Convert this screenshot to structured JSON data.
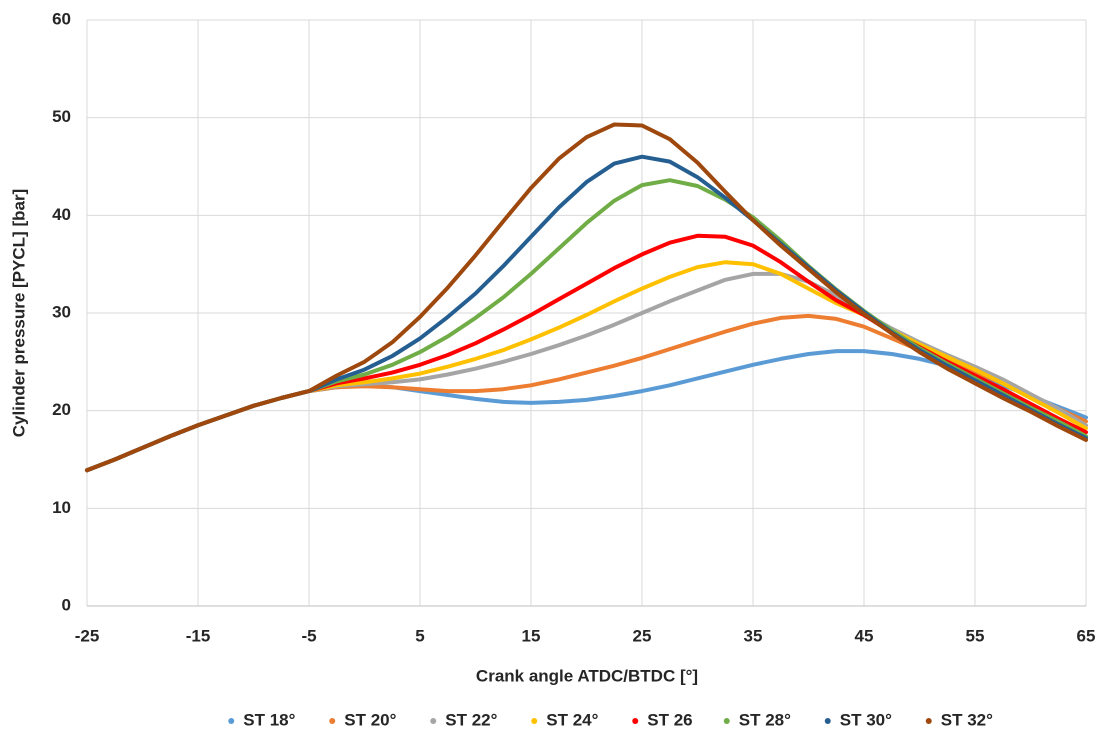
{
  "chart_data": {
    "type": "line",
    "xlabel": "Crank angle ATDC/BTDC [°]",
    "ylabel": "Cylinder pressure [PYCL] [bar]",
    "x": [
      -25,
      -22.5,
      -20,
      -17.5,
      -15,
      -12.5,
      -10,
      -7.5,
      -5,
      -2.5,
      0,
      2.5,
      5,
      7.5,
      10,
      12.5,
      15,
      17.5,
      20,
      22.5,
      25,
      27.5,
      30,
      32.5,
      35,
      37.5,
      40,
      42.5,
      45,
      47.5,
      50,
      52.5,
      55,
      57.5,
      60,
      62.5,
      65
    ],
    "xlim": [
      -25,
      65
    ],
    "xticks": [
      -25,
      -15,
      -5,
      5,
      15,
      25,
      35,
      45,
      55,
      65
    ],
    "ylim": [
      0,
      60
    ],
    "yticks": [
      0,
      10,
      20,
      30,
      40,
      50,
      60
    ],
    "grid": true,
    "legend": "bottom",
    "series": [
      {
        "name": "ST 18°",
        "color": "#5b9bd5",
        "values": [
          13.9,
          15.0,
          16.2,
          17.4,
          18.5,
          19.5,
          20.5,
          21.3,
          22.0,
          22.4,
          22.6,
          22.4,
          22.0,
          21.6,
          21.2,
          20.9,
          20.8,
          20.9,
          21.1,
          21.5,
          22.0,
          22.6,
          23.3,
          24.0,
          24.7,
          25.3,
          25.8,
          26.1,
          26.1,
          25.8,
          25.3,
          24.6,
          23.6,
          22.6,
          21.5,
          20.4,
          19.3
        ]
      },
      {
        "name": "ST 20°",
        "color": "#ed7d31",
        "values": [
          13.9,
          15.0,
          16.2,
          17.4,
          18.5,
          19.5,
          20.5,
          21.3,
          22.0,
          22.4,
          22.5,
          22.4,
          22.2,
          22.0,
          22.0,
          22.2,
          22.6,
          23.2,
          23.9,
          24.6,
          25.4,
          26.3,
          27.2,
          28.1,
          28.9,
          29.5,
          29.7,
          29.4,
          28.6,
          27.4,
          26.2,
          25.1,
          24.0,
          22.8,
          21.5,
          20.2,
          18.9
        ]
      },
      {
        "name": "ST 22°",
        "color": "#a5a5a5",
        "values": [
          13.9,
          15.0,
          16.2,
          17.4,
          18.5,
          19.5,
          20.5,
          21.3,
          22.0,
          22.5,
          22.7,
          22.9,
          23.2,
          23.7,
          24.3,
          25.0,
          25.8,
          26.7,
          27.7,
          28.8,
          30.0,
          31.2,
          32.3,
          33.4,
          34.0,
          34.0,
          33.2,
          31.8,
          30.0,
          28.4,
          27.0,
          25.7,
          24.5,
          23.2,
          21.7,
          20.2,
          18.5
        ]
      },
      {
        "name": "ST 24°",
        "color": "#ffc000",
        "values": [
          13.9,
          15.0,
          16.2,
          17.4,
          18.5,
          19.5,
          20.5,
          21.3,
          22.0,
          22.6,
          22.9,
          23.3,
          23.8,
          24.5,
          25.3,
          26.2,
          27.3,
          28.5,
          29.8,
          31.2,
          32.5,
          33.7,
          34.7,
          35.2,
          35.0,
          34.0,
          32.5,
          31.0,
          29.8,
          28.2,
          26.8,
          25.5,
          24.2,
          22.8,
          21.3,
          19.8,
          18.2
        ]
      },
      {
        "name": "ST 26",
        "color": "#ff0000",
        "values": [
          13.9,
          15.0,
          16.2,
          17.4,
          18.5,
          19.5,
          20.5,
          21.3,
          22.0,
          22.8,
          23.3,
          23.9,
          24.7,
          25.7,
          26.9,
          28.3,
          29.8,
          31.4,
          33.0,
          34.6,
          36.0,
          37.2,
          37.9,
          37.8,
          36.9,
          35.2,
          33.2,
          31.3,
          29.8,
          28.0,
          26.5,
          25.0,
          23.6,
          22.2,
          20.7,
          19.2,
          17.8
        ]
      },
      {
        "name": "ST 28°",
        "color": "#70ad47",
        "values": [
          13.9,
          15.0,
          16.2,
          17.4,
          18.5,
          19.5,
          20.5,
          21.3,
          22.0,
          23.0,
          23.7,
          24.7,
          26.0,
          27.6,
          29.5,
          31.6,
          34.0,
          36.6,
          39.2,
          41.5,
          43.1,
          43.6,
          43.0,
          41.6,
          39.8,
          37.4,
          34.8,
          32.4,
          30.2,
          28.2,
          26.4,
          24.8,
          23.3,
          21.8,
          20.3,
          18.9,
          17.4
        ]
      },
      {
        "name": "ST 30°",
        "color": "#255e91",
        "values": [
          13.9,
          15.0,
          16.2,
          17.4,
          18.5,
          19.5,
          20.5,
          21.3,
          22.0,
          23.2,
          24.2,
          25.6,
          27.4,
          29.6,
          32.0,
          34.8,
          37.8,
          40.8,
          43.4,
          45.3,
          46.0,
          45.5,
          43.9,
          41.8,
          39.5,
          37.1,
          34.7,
          32.3,
          30.1,
          28.0,
          26.2,
          24.6,
          23.1,
          21.6,
          20.1,
          18.6,
          17.2
        ]
      },
      {
        "name": "ST 32°",
        "color": "#9e480e",
        "values": [
          13.9,
          15.0,
          16.2,
          17.4,
          18.5,
          19.5,
          20.5,
          21.3,
          22.0,
          23.6,
          25.0,
          27.0,
          29.6,
          32.6,
          35.9,
          39.4,
          42.8,
          45.8,
          48.0,
          49.3,
          49.2,
          47.8,
          45.4,
          42.4,
          39.5,
          36.9,
          34.5,
          32.1,
          29.9,
          27.9,
          26.0,
          24.3,
          22.8,
          21.3,
          19.9,
          18.4,
          17.0
        ]
      }
    ]
  }
}
